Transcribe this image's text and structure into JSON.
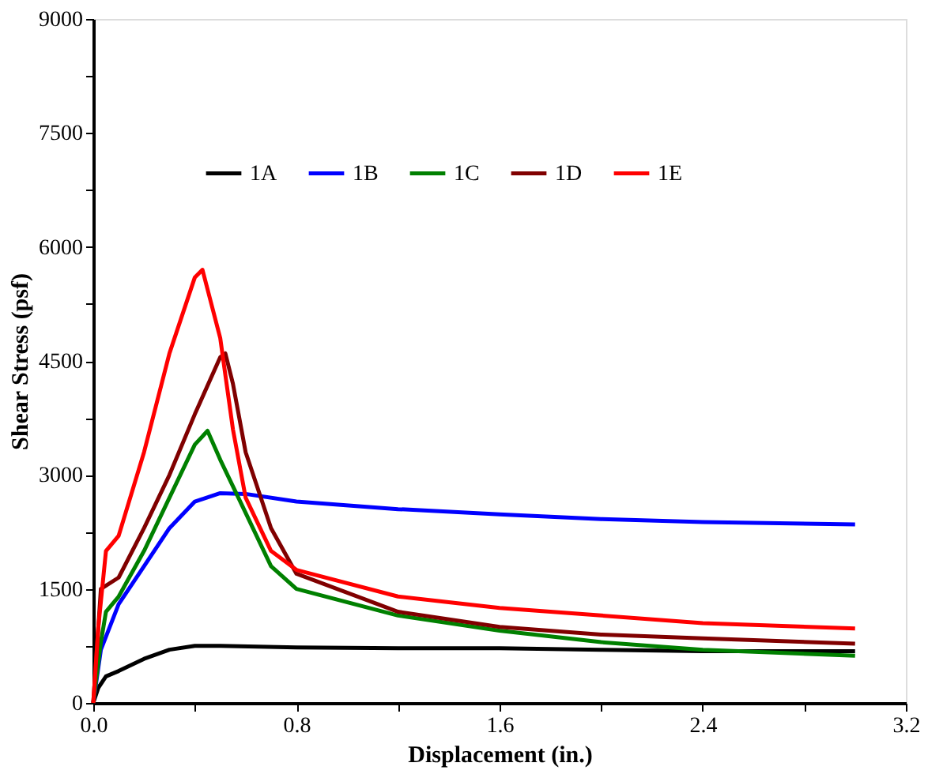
{
  "chart_data": {
    "type": "line",
    "xlabel": "Displacement (in.)",
    "ylabel": "Shear Stress (psf)",
    "xlim": [
      0,
      3.2
    ],
    "ylim": [
      0,
      9000
    ],
    "xticks": [
      {
        "value": 0,
        "label": "0.0"
      },
      {
        "value": 0.4,
        "label": null
      },
      {
        "value": 0.8,
        "label": "0.8"
      },
      {
        "value": 1.2,
        "label": null
      },
      {
        "value": 1.6,
        "label": "1.6"
      },
      {
        "value": 2.0,
        "label": null
      },
      {
        "value": 2.4,
        "label": "2.4"
      },
      {
        "value": 2.8,
        "label": null
      },
      {
        "value": 3.2,
        "label": "3.2"
      }
    ],
    "yticks": [
      0,
      {
        "value": 750,
        "label": null
      },
      1500,
      {
        "value": 2250,
        "label": null
      },
      3000,
      {
        "value": 3750,
        "label": null
      },
      4500,
      {
        "value": 5250,
        "label": null
      },
      6000,
      {
        "value": 6750,
        "label": null
      },
      7500,
      {
        "value": 8250,
        "label": null
      },
      9000
    ],
    "grid": false,
    "legend": "top",
    "marker": "none",
    "line_style": "solid",
    "series": [
      {
        "name": "1A",
        "color": "#000000",
        "x": [
          0,
          0.02,
          0.05,
          0.1,
          0.2,
          0.3,
          0.4,
          0.5,
          0.8,
          1.2,
          1.6,
          2.0,
          2.4,
          3.0
        ],
        "values": [
          0,
          200,
          350,
          420,
          580,
          700,
          750,
          750,
          730,
          720,
          720,
          700,
          680,
          680
        ]
      },
      {
        "name": "1B",
        "color": "#0000ff",
        "x": [
          0,
          0.03,
          0.1,
          0.2,
          0.3,
          0.4,
          0.5,
          0.6,
          0.8,
          1.2,
          1.6,
          2.0,
          2.4,
          3.0
        ],
        "values": [
          0,
          700,
          1300,
          1800,
          2300,
          2650,
          2760,
          2750,
          2650,
          2550,
          2480,
          2420,
          2380,
          2350
        ]
      },
      {
        "name": "1C",
        "color": "#008000",
        "x": [
          0,
          0.03,
          0.05,
          0.1,
          0.2,
          0.3,
          0.4,
          0.45,
          0.5,
          0.6,
          0.7,
          0.8,
          1.2,
          1.6,
          2.0,
          2.4,
          3.0
        ],
        "values": [
          0,
          800,
          1200,
          1400,
          2000,
          2700,
          3400,
          3580,
          3200,
          2500,
          1800,
          1500,
          1150,
          950,
          800,
          700,
          620
        ]
      },
      {
        "name": "1D",
        "color": "#800000",
        "x": [
          0,
          0.03,
          0.1,
          0.2,
          0.3,
          0.4,
          0.5,
          0.52,
          0.55,
          0.6,
          0.7,
          0.8,
          1.2,
          1.6,
          2.0,
          2.4,
          3.0
        ],
        "values": [
          0,
          1500,
          1650,
          2300,
          3000,
          3800,
          4550,
          4600,
          4200,
          3300,
          2300,
          1700,
          1200,
          1000,
          900,
          850,
          780
        ]
      },
      {
        "name": "1E",
        "color": "#ff0000",
        "x": [
          0,
          0.02,
          0.05,
          0.1,
          0.2,
          0.3,
          0.4,
          0.43,
          0.5,
          0.55,
          0.6,
          0.7,
          0.8,
          1.2,
          1.6,
          2.0,
          2.4,
          3.0
        ],
        "values": [
          0,
          1000,
          2000,
          2200,
          3300,
          4600,
          5600,
          5700,
          4800,
          3600,
          2700,
          2000,
          1750,
          1400,
          1250,
          1150,
          1050,
          980
        ]
      }
    ]
  }
}
